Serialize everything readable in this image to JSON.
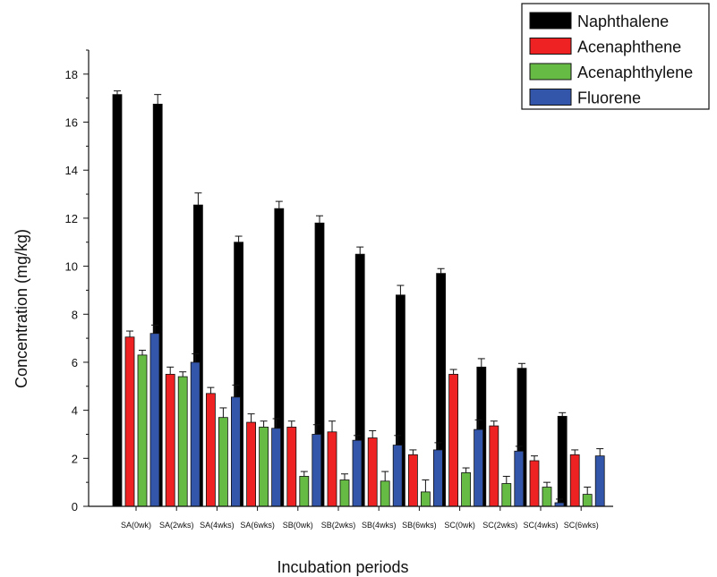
{
  "chart_data": {
    "type": "bar",
    "title": "",
    "xlabel": "Incubation periods",
    "ylabel": "Concentration (mg/kg)",
    "ylim": [
      0,
      19
    ],
    "yticks": [
      0,
      2,
      4,
      6,
      8,
      10,
      12,
      14,
      16,
      18
    ],
    "categories": [
      "SA(0wk)",
      "SA(2wks)",
      "SA(4wks)",
      "SA(6wks)",
      "SB(0wk)",
      "SB(2wks)",
      "SB(4wks)",
      "SB(6wks)",
      "SC(0wk)",
      "SC(2wks)",
      "SC(4wks)",
      "SC(6wks)"
    ],
    "legend_position": "top-right",
    "series": [
      {
        "name": "Naphthalene",
        "color": "#000000",
        "values": [
          17.15,
          16.75,
          12.55,
          11.0,
          12.4,
          11.8,
          10.5,
          8.8,
          9.7,
          5.8,
          5.75,
          3.75
        ],
        "errors": [
          0.15,
          0.4,
          0.5,
          0.25,
          0.3,
          0.3,
          0.3,
          0.4,
          0.2,
          0.35,
          0.2,
          0.15
        ]
      },
      {
        "name": "Acenaphthene",
        "color": "#ee2222",
        "values": [
          7.05,
          5.5,
          4.7,
          3.5,
          3.3,
          3.1,
          2.85,
          2.15,
          5.5,
          3.35,
          1.9,
          2.15
        ],
        "errors": [
          0.25,
          0.3,
          0.25,
          0.35,
          0.25,
          0.45,
          0.3,
          0.2,
          0.2,
          0.2,
          0.2,
          0.2
        ]
      },
      {
        "name": "Acenaphthylene",
        "color": "#66bb44",
        "values": [
          6.3,
          5.4,
          3.7,
          3.3,
          1.25,
          1.1,
          1.05,
          0.6,
          1.4,
          0.95,
          0.8,
          0.5
        ],
        "errors": [
          0.2,
          0.2,
          0.4,
          0.25,
          0.2,
          0.25,
          0.4,
          0.5,
          0.2,
          0.3,
          0.2,
          0.3
        ]
      },
      {
        "name": "Fluorene",
        "color": "#3355aa",
        "values": [
          7.2,
          6.0,
          4.55,
          3.25,
          3.0,
          2.75,
          2.55,
          2.35,
          3.2,
          2.3,
          0.15,
          2.1
        ],
        "errors": [
          0.35,
          0.35,
          0.5,
          0.4,
          0.4,
          0.2,
          0.4,
          0.3,
          0.4,
          0.2,
          0.15,
          0.3
        ]
      }
    ]
  }
}
